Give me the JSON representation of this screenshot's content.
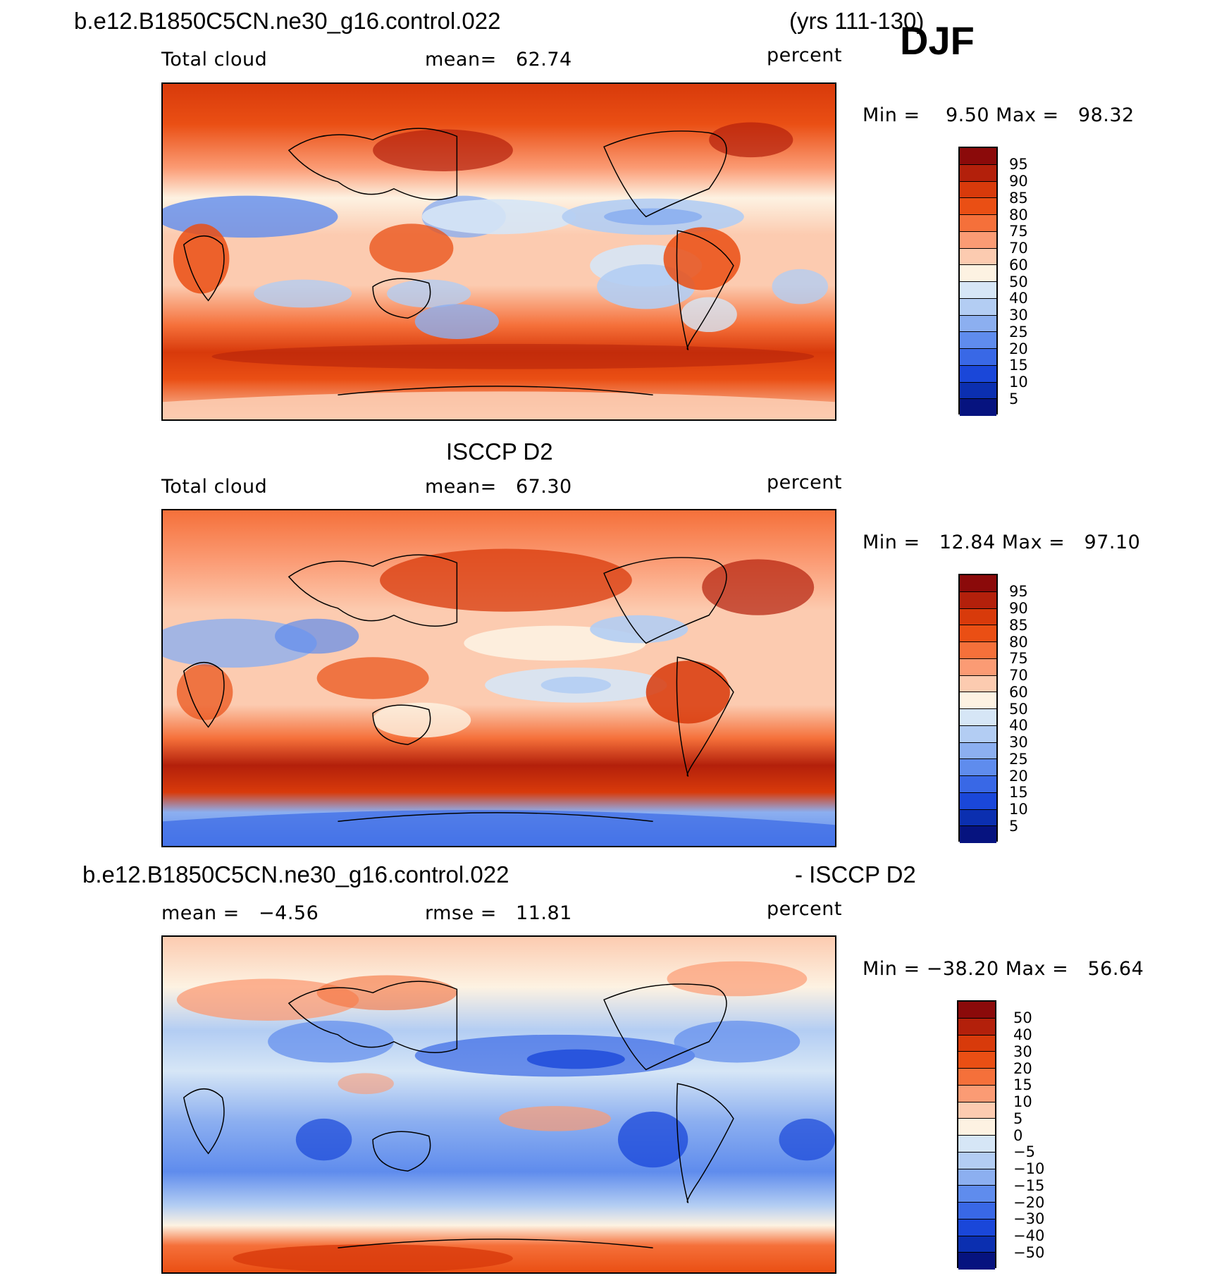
{
  "header": {
    "case_name": "b.e12.B1850C5CN.ne30_g16.control.022",
    "years": "(yrs 111-130)",
    "season": "DJF"
  },
  "panels": [
    {
      "id": "model",
      "section_title": "",
      "left_label": "Total cloud",
      "mid_label": "mean=   62.74",
      "units": "percent",
      "minmax": "Min =    9.50 Max =   98.32",
      "colorbar_labels": [
        "95",
        "90",
        "85",
        "80",
        "75",
        "70",
        "60",
        "50",
        "40",
        "30",
        "25",
        "20",
        "15",
        "10",
        "5"
      ]
    },
    {
      "id": "obs",
      "section_title": "ISCCP D2",
      "left_label": "Total cloud",
      "mid_label": "mean=   67.30",
      "units": "percent",
      "minmax": "Min =   12.84 Max =   97.10",
      "colorbar_labels": [
        "95",
        "90",
        "85",
        "80",
        "75",
        "70",
        "60",
        "50",
        "40",
        "30",
        "25",
        "20",
        "15",
        "10",
        "5"
      ]
    },
    {
      "id": "diff",
      "section_title_left": "b.e12.B1850C5CN.ne30_g16.control.022",
      "section_title_right": "- ISCCP D2",
      "left_label": "mean =   −4.56",
      "mid_label": "rmse =   11.81",
      "units": "percent",
      "minmax": "Min = −38.20 Max =   56.64",
      "colorbar_labels": [
        "50",
        "40",
        "30",
        "20",
        "15",
        "10",
        "5",
        "0",
        "−5",
        "−10",
        "−15",
        "−20",
        "−30",
        "−40",
        "−50"
      ]
    }
  ],
  "colors": {
    "scale": [
      "#8b0a0a",
      "#b3200b",
      "#d83a0b",
      "#ea4f14",
      "#f5703a",
      "#fb9b74",
      "#fccbb0",
      "#fdf2e2",
      "#d6e6f6",
      "#b3cdf3",
      "#8caff0",
      "#5f8ced",
      "#3968e6",
      "#1a47d9",
      "#0b2fb0",
      "#06137f"
    ]
  }
}
